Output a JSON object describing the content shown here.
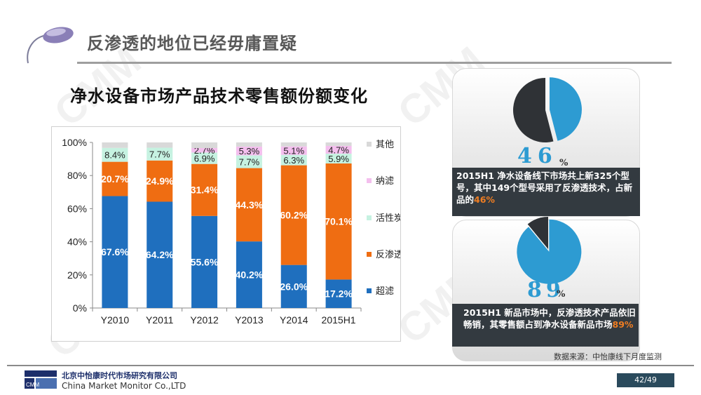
{
  "slide": {
    "title": "反渗透的地位已经毋庸置疑",
    "page_number": "42/49"
  },
  "watermark": "CMM",
  "chart_heading": "净水设备市场产品技术零售额份额变化",
  "chart_data": {
    "type": "bar",
    "stacked": true,
    "categories": [
      "Y2010",
      "Y2011",
      "Y2012",
      "Y2013",
      "Y2014",
      "2015H1"
    ],
    "series": [
      {
        "name": "超滤",
        "color": "#1f6fbe",
        "values": [
          67.6,
          64.2,
          55.6,
          40.2,
          26.0,
          17.2
        ],
        "labels": [
          "67.6%",
          "64.2%",
          "55.6%",
          "40.2%",
          "26.0%",
          "17.2%"
        ]
      },
      {
        "name": "反渗透",
        "color": "#ef6d12",
        "values": [
          20.7,
          24.9,
          31.4,
          44.3,
          60.2,
          70.1
        ],
        "labels": [
          "20.7%",
          "24.9%",
          "31.4%",
          "44.3%",
          "60.2%",
          "70.1%"
        ]
      },
      {
        "name": "活性炭",
        "color": "#c6f2e1",
        "values": [
          8.4,
          7.7,
          6.9,
          7.7,
          6.3,
          5.9
        ],
        "labels": [
          "8.4%",
          "7.7%",
          "6.9%",
          "7.7%",
          "6.3%",
          "5.9%"
        ]
      },
      {
        "name": "纳滤",
        "color": "#f4bfee",
        "values": [
          0,
          0,
          2.7,
          5.3,
          5.1,
          4.7
        ],
        "labels": [
          "",
          "",
          "2.7%",
          "5.3%",
          "5.1%",
          "4.7%"
        ]
      },
      {
        "name": "其他",
        "color": "#d9d9d9",
        "values": [
          3.3,
          3.2,
          3.4,
          2.5,
          2.4,
          2.1
        ],
        "labels": [
          "",
          "",
          "",
          "",
          "",
          ""
        ]
      }
    ],
    "ylim": [
      0,
      100
    ],
    "yticks": [
      "0%",
      "20%",
      "40%",
      "60%",
      "80%",
      "100%"
    ],
    "legend": [
      "其他",
      "纳滤",
      "活性炭",
      "反渗透",
      "超滤"
    ],
    "legend_placement": "right",
    "grid": false
  },
  "pie1": {
    "value": 46,
    "big_text": "46",
    "pct_sign": "%",
    "color_main": "#2d9bd2",
    "color_rest": "#2f3236"
  },
  "pie2": {
    "value": 89,
    "big_text": "89",
    "pct_sign": "%",
    "color_main": "#2d9bd2",
    "color_rest": "#2f3236"
  },
  "info1": {
    "text": "2015H1 净水设备线下市场共上新325个型号，其中149个型号采用了反渗透技术，占新品的",
    "highlight": "46%"
  },
  "info2": {
    "text": "2015H1 新品市场中，反渗透技术产品依旧畅销，其零售额占到净水设备新品市场",
    "highlight": "89%"
  },
  "source": "数据来源：中怡康线下月度监测",
  "company": {
    "cn": "北京中怡康时代市场研究有限公司",
    "en": "China Market Monitor Co.,LTD",
    "logo_text": "CMM"
  }
}
